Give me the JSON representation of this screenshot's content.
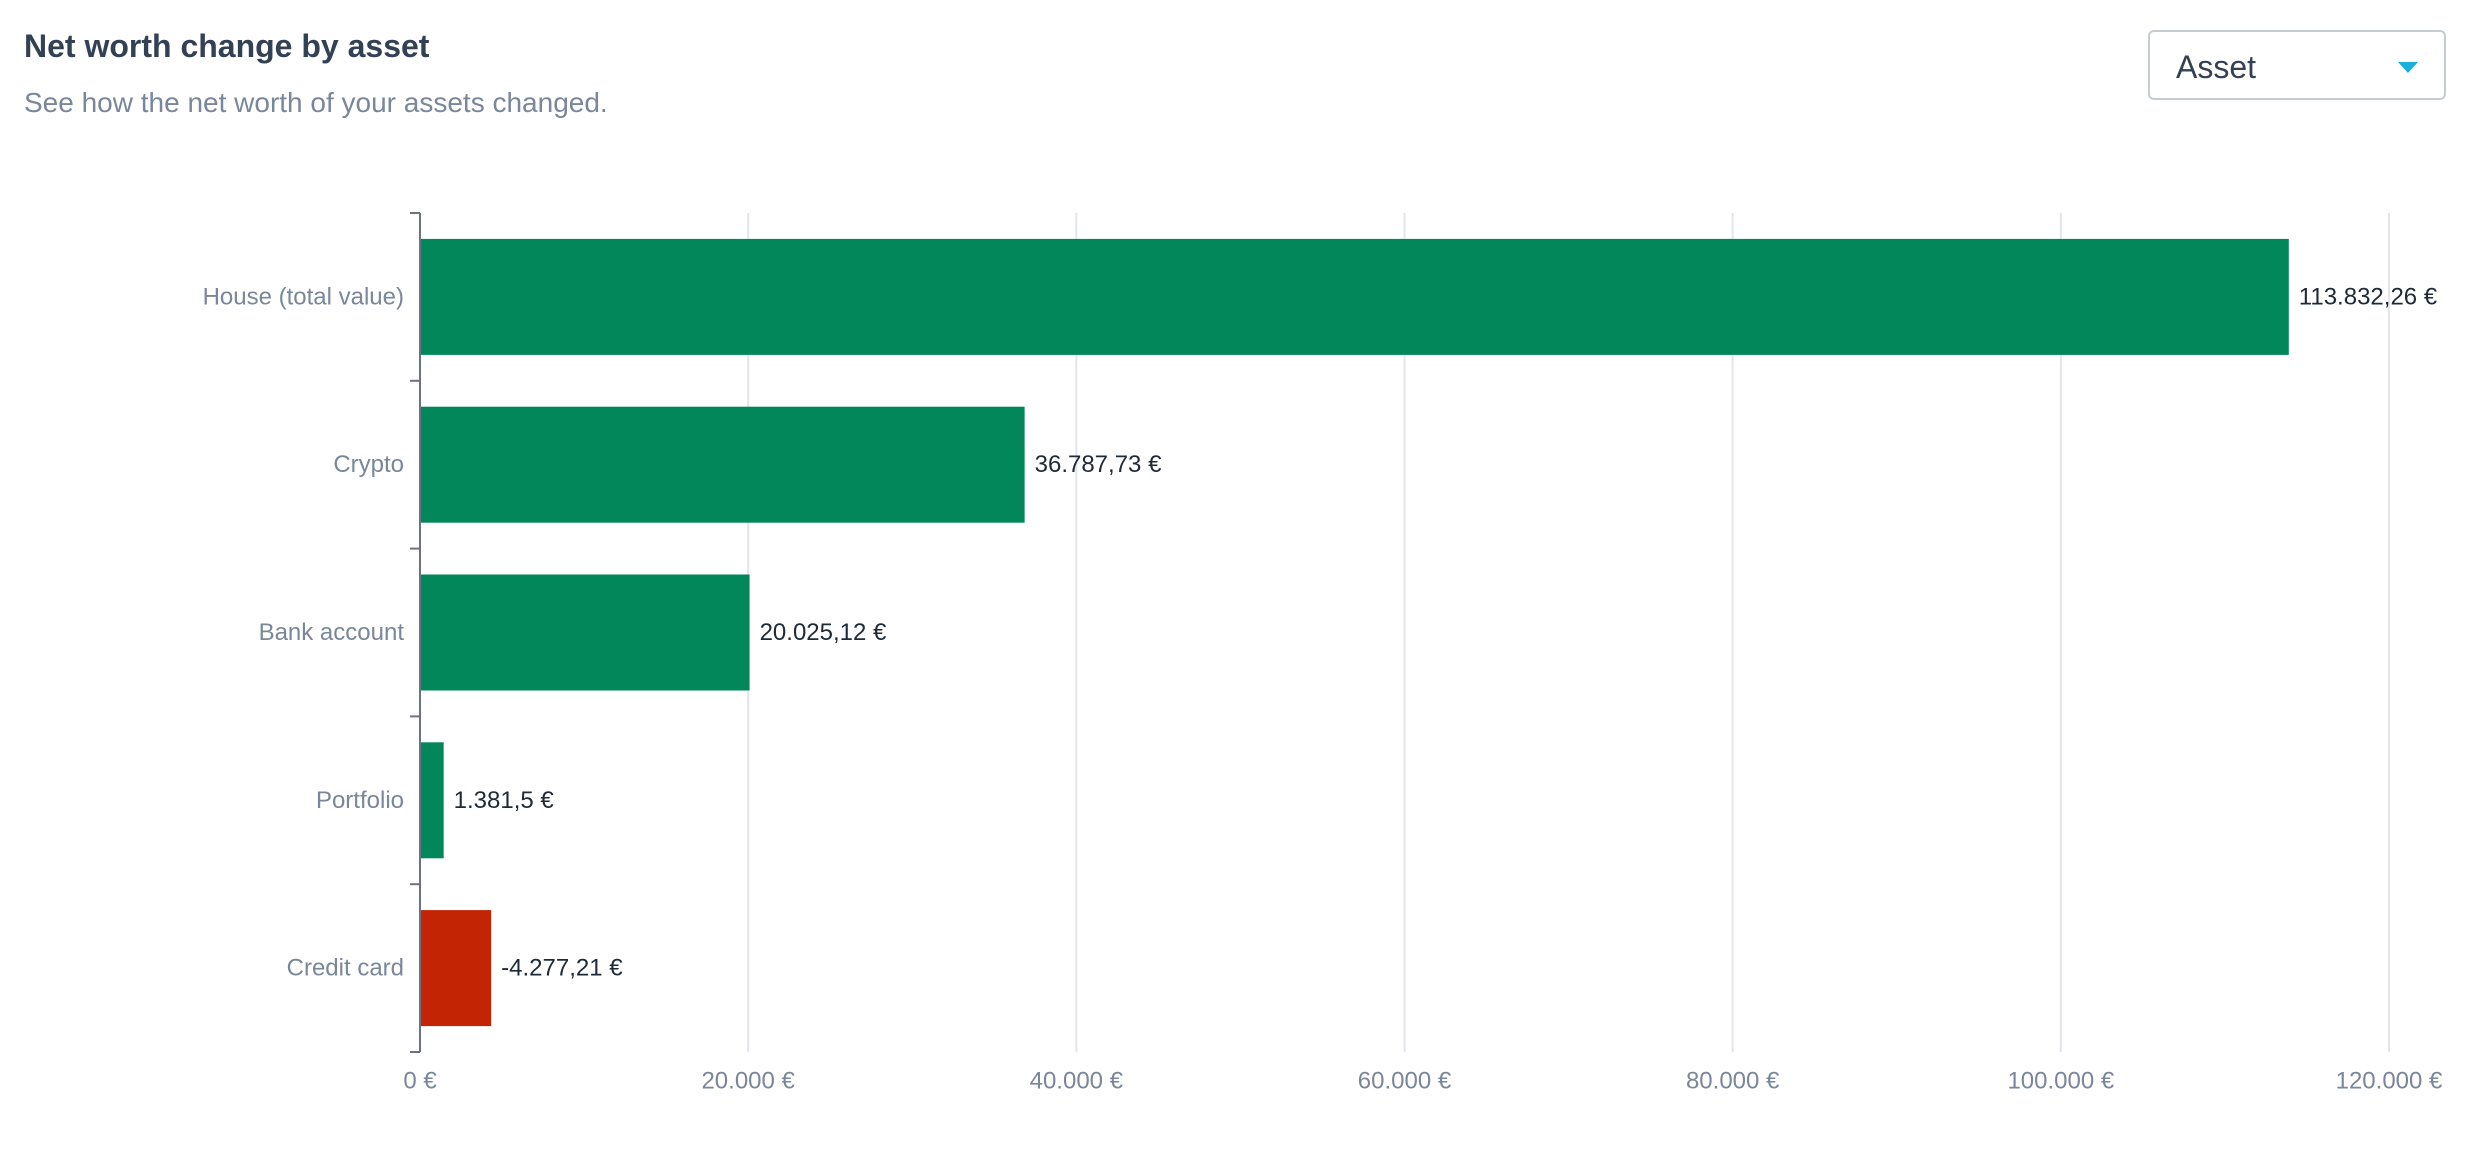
{
  "header": {
    "title": "Net worth change by asset",
    "subtitle": "See how the net worth of your assets changed."
  },
  "group_select": {
    "value": "Asset"
  },
  "colors": {
    "positive": "#02875b",
    "negative": "#c22404",
    "grid": "#e2e5e9",
    "axis": "#6b7280",
    "dropdown_caret": "#1ab0dd"
  },
  "chart_data": {
    "type": "bar",
    "orientation": "horizontal",
    "categories": [
      "House (total value)",
      "Crypto",
      "Bank account",
      "Portfolio",
      "Credit card"
    ],
    "values": [
      113832.26,
      36787.73,
      20025.12,
      1381.5,
      -4277.21
    ],
    "value_labels": [
      "113.832,26 €",
      "36.787,73 €",
      "20.025,12 €",
      "1.381,5 €",
      "-4.277,21 €"
    ],
    "bar_signs": [
      "positive",
      "positive",
      "positive",
      "positive",
      "negative"
    ],
    "x_ticks": [
      0,
      20000,
      40000,
      60000,
      80000,
      100000,
      120000
    ],
    "x_tick_labels": [
      "0 €",
      "20.000 €",
      "40.000 €",
      "60.000 €",
      "80.000 €",
      "100.000 €",
      "120.000 €"
    ],
    "xlim": [
      0,
      120000
    ],
    "grid": true,
    "legend": "none"
  }
}
